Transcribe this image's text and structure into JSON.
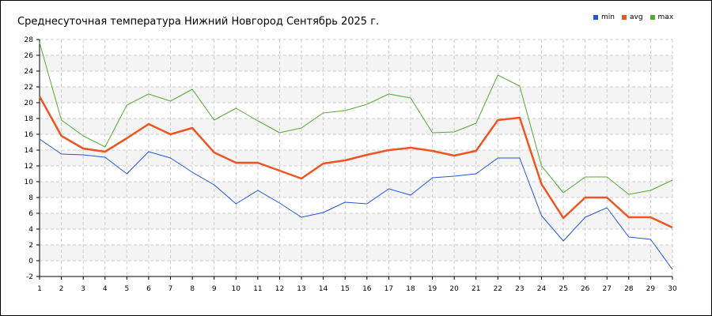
{
  "chart_data": {
    "type": "line",
    "title": "Среднесуточная температура Нижний Новгород  Сентябрь 2025 г.",
    "xlabel": "",
    "ylabel": "",
    "x": [
      1,
      2,
      3,
      4,
      5,
      6,
      7,
      8,
      9,
      10,
      11,
      12,
      13,
      14,
      15,
      16,
      17,
      18,
      19,
      20,
      21,
      22,
      23,
      24,
      25,
      26,
      27,
      28,
      29,
      30
    ],
    "ylim": [
      -2,
      28
    ],
    "yticks": [
      -2,
      0,
      2,
      4,
      6,
      8,
      10,
      12,
      14,
      16,
      18,
      20,
      22,
      24,
      26,
      28
    ],
    "grid": true,
    "legend_position": "top-right",
    "series": [
      {
        "name": "min",
        "color": "#2255dd",
        "values": [
          15.4,
          13.5,
          13.4,
          13.1,
          11.0,
          13.8,
          13.0,
          11.2,
          9.6,
          7.2,
          8.9,
          7.3,
          5.5,
          6.1,
          7.4,
          7.2,
          9.1,
          8.3,
          10.5,
          10.7,
          11.0,
          13.0,
          13.0,
          5.7,
          2.5,
          5.5,
          6.7,
          3.0,
          2.7,
          -1.1
        ]
      },
      {
        "name": "avg",
        "color": "#ee5522",
        "values": [
          20.8,
          15.8,
          14.2,
          13.8,
          15.5,
          17.3,
          16.0,
          16.8,
          13.7,
          12.4,
          12.4,
          11.4,
          10.4,
          12.3,
          12.7,
          13.4,
          14.0,
          14.3,
          13.9,
          13.3,
          13.9,
          17.8,
          18.1,
          9.7,
          5.4,
          8.0,
          8.0,
          5.5,
          5.5,
          4.2
        ]
      },
      {
        "name": "max",
        "color": "#55aa33",
        "values": [
          27.6,
          17.8,
          15.8,
          14.4,
          19.7,
          21.1,
          20.2,
          21.7,
          17.8,
          19.3,
          17.7,
          16.2,
          16.8,
          18.7,
          19.0,
          19.8,
          21.1,
          20.6,
          16.2,
          16.3,
          17.4,
          23.5,
          22.1,
          12.0,
          8.6,
          10.6,
          10.6,
          8.4,
          8.9,
          10.2
        ]
      }
    ]
  }
}
